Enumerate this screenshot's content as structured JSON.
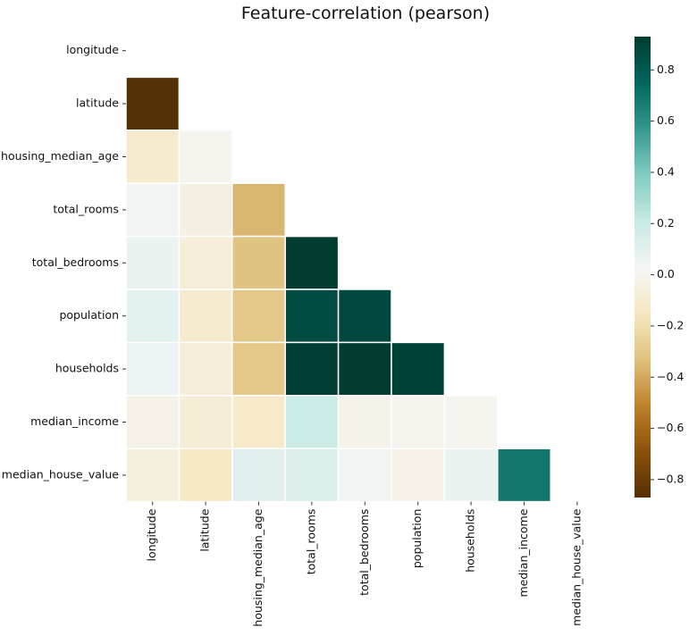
{
  "chart_data": {
    "type": "heatmap",
    "title": "Feature-correlation (pearson)",
    "xlabel": "",
    "ylabel": "",
    "mask": "upper-triangle-including-diagonal",
    "labels": [
      "longitude",
      "latitude",
      "housing_median_age",
      "total_rooms",
      "total_bedrooms",
      "population",
      "households",
      "median_income",
      "median_house_value"
    ],
    "matrix": [
      [
        null,
        null,
        null,
        null,
        null,
        null,
        null,
        null,
        null
      ],
      [
        -0.92,
        null,
        null,
        null,
        null,
        null,
        null,
        null,
        null
      ],
      [
        -0.11,
        0.01,
        null,
        null,
        null,
        null,
        null,
        null,
        null
      ],
      [
        0.04,
        -0.04,
        -0.36,
        null,
        null,
        null,
        null,
        null,
        null
      ],
      [
        0.07,
        -0.07,
        -0.32,
        0.93,
        null,
        null,
        null,
        null,
        null
      ],
      [
        0.1,
        -0.11,
        -0.3,
        0.86,
        0.88,
        null,
        null,
        null,
        null
      ],
      [
        0.06,
        -0.07,
        -0.3,
        0.92,
        0.98,
        0.91,
        null,
        null,
        null
      ],
      [
        -0.02,
        -0.08,
        -0.12,
        0.2,
        -0.01,
        0.0,
        0.01,
        null,
        null
      ],
      [
        -0.05,
        -0.14,
        0.11,
        0.13,
        0.05,
        -0.02,
        0.07,
        0.69,
        null
      ]
    ],
    "colorbar": {
      "colormap": "BrBG",
      "vmin": -0.87,
      "vmax": 0.93,
      "ticks": [
        0.8,
        0.6,
        0.4,
        0.2,
        0.0,
        -0.2,
        -0.4,
        -0.6,
        -0.8
      ],
      "tick_labels": [
        "0.8",
        "0.6",
        "0.4",
        "0.2",
        "0.0",
        "−0.2",
        "−0.4",
        "−0.6",
        "−0.8"
      ]
    },
    "colors": {
      "background": "#ffffff",
      "cell_border": "#ffffff"
    }
  }
}
